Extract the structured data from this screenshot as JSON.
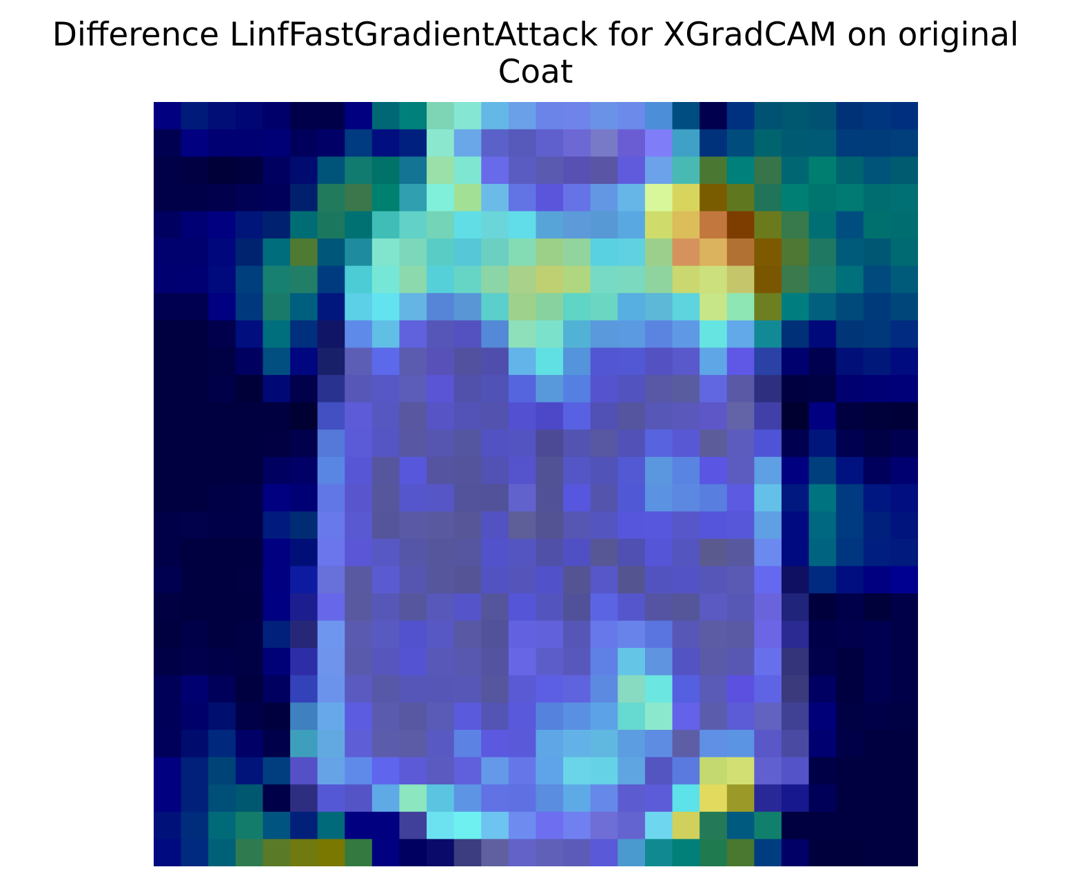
{
  "title": {
    "line1": "Difference LinfFastGradientAttack for XGradCAM on original",
    "line2": "Coat"
  },
  "chart_data": {
    "type": "heatmap",
    "title": "Difference LinfFastGradientAttack for XGradCAM on original Coat",
    "rows": 28,
    "cols": 28,
    "axes": "off",
    "colorscale": "jet colormap blended over a grayscale coat image",
    "cells": [
      [
        "#000080",
        "#001a7a",
        "#000e75",
        "#000673",
        "#00006a",
        "#00004a",
        "#000048",
        "#000080",
        "#006775",
        "#00807a",
        "#7dd5b6",
        "#85e6d3",
        "#63b8e6",
        "#6aa0e8",
        "#6b84e8",
        "#6f84ea",
        "#6a92e6",
        "#6b8ae9",
        "#4c8ed7",
        "#004d82",
        "#00004f",
        "#003080",
        "#005273",
        "#005770",
        "#005172",
        "#003278",
        "#00367e",
        "#002f80"
      ],
      [
        "#000050",
        "#000080",
        "#000073",
        "#000072",
        "#000076",
        "#00005c",
        "#000066",
        "#003a80",
        "#000e80",
        "#002080",
        "#8be8ce",
        "#6aa7e8",
        "#5a62c9",
        "#5759bb",
        "#5f5fce",
        "#6c68d4",
        "#7879c7",
        "#6a5dd3",
        "#7f7ef8",
        "#3fa1c6",
        "#00327c",
        "#004c7d",
        "#00646e",
        "#005b72",
        "#005a75",
        "#003b7b",
        "#003b7a",
        "#003e7c"
      ],
      [
        "#000048",
        "#000043",
        "#000038",
        "#00003f",
        "#000060",
        "#000b70",
        "#005479",
        "#127b70",
        "#007268",
        "#147493",
        "#9ae0a8",
        "#7ee6d1",
        "#686aea",
        "#5a5cc1",
        "#5b5ab1",
        "#5851b3",
        "#5a55a5",
        "#5f5bdc",
        "#6ca2ea",
        "#48bab3",
        "#4a7833",
        "#00807a",
        "#37744a",
        "#006672",
        "#007f70",
        "#006470",
        "#00547a",
        "#005b71"
      ],
      [
        "#000048",
        "#000049",
        "#00004c",
        "#000054",
        "#00005b",
        "#00206d",
        "#227a5c",
        "#3c774b",
        "#00806f",
        "#309fb0",
        "#80f0da",
        "#a2e096",
        "#6bbbe9",
        "#6273e4",
        "#5b55dc",
        "#6573e6",
        "#6397e4",
        "#66b7e8",
        "#d8f79b",
        "#d8d55e",
        "#7a5c00",
        "#5f7820",
        "#1f745a",
        "#007f75",
        "#00746f",
        "#007a73",
        "#006e70",
        "#007074"
      ],
      [
        "#000060",
        "#000074",
        "#000080",
        "#00157a",
        "#00216f",
        "#006d74",
        "#1b785f",
        "#007173",
        "#40bdb6",
        "#62d2c8",
        "#74d4b7",
        "#61dde6",
        "#6ad6da",
        "#60dde9",
        "#57a4d9",
        "#5c9ad9",
        "#5799d4",
        "#5aa8e1",
        "#cfdc6c",
        "#dbbd5a",
        "#c1773e",
        "#7d3d00",
        "#6c7a1e",
        "#387a4b",
        "#006f74",
        "#004e80",
        "#00706f",
        "#006e70"
      ],
      [
        "#00006f",
        "#00006f",
        "#00077c",
        "#002370",
        "#006d7c",
        "#4f7a34",
        "#005678",
        "#1e8c9e",
        "#81e5cd",
        "#7dd7ba",
        "#59cdc5",
        "#55c7d6",
        "#6bd0c2",
        "#84dcb4",
        "#9ccf88",
        "#92d49d",
        "#59d1e0",
        "#5fd1e1",
        "#9ccf8b",
        "#d5925c",
        "#dbb25d",
        "#b07133",
        "#7d5900",
        "#4e7833",
        "#1f7862",
        "#005b7a",
        "#005774",
        "#006a73"
      ],
      [
        "#000070",
        "#000072",
        "#000a7d",
        "#003f7e",
        "#178070",
        "#217f68",
        "#003b80",
        "#4ccdd5",
        "#76e6d6",
        "#8cd9ad",
        "#56d0d8",
        "#66d5c6",
        "#8cd5a7",
        "#aad189",
        "#bfd072",
        "#b0d67f",
        "#76dac4",
        "#7ad9be",
        "#8fd39e",
        "#cad86f",
        "#cde07e",
        "#c5c66b",
        "#7a5600",
        "#3a7a4d",
        "#1a7c6c",
        "#00717a",
        "#004a7d",
        "#005a7a"
      ],
      [
        "#000050",
        "#000050",
        "#000080",
        "#00387e",
        "#1a7a6a",
        "#005f7e",
        "#01177d",
        "#5bd0e6",
        "#62e3ef",
        "#64b5e4",
        "#5684d7",
        "#5996d6",
        "#5bcfcb",
        "#9ed18c",
        "#87d29f",
        "#5ed5c5",
        "#6bd6c2",
        "#57aee0",
        "#5cb8d6",
        "#5ed4df",
        "#c7e687",
        "#8fe6b5",
        "#6d7f20",
        "#007e7f",
        "#00607d",
        "#004a7b",
        "#003a7b",
        "#00467b"
      ],
      [
        "#000040",
        "#000040",
        "#00004c",
        "#000e7e",
        "#006f7d",
        "#002f7e",
        "#111565",
        "#5e8ae9",
        "#61bfe6",
        "#6061dd",
        "#5656b9",
        "#5452c0",
        "#5389d6",
        "#8de0ba",
        "#7ce1ca",
        "#52b2d5",
        "#5a99dc",
        "#5b9ae1",
        "#5b84e0",
        "#5f99e5",
        "#66e4e2",
        "#62a9e9",
        "#128a95",
        "#003078",
        "#00097a",
        "#003678",
        "#00397b",
        "#002b80"
      ],
      [
        "#000040",
        "#000040",
        "#000044",
        "#000061",
        "#004f80",
        "#000580",
        "#19206a",
        "#5c5eb6",
        "#5b69ea",
        "#5b5caf",
        "#5852b8",
        "#5151a0",
        "#4f4ead",
        "#63b4e8",
        "#61e0e3",
        "#5494da",
        "#5356d2",
        "#5258d3",
        "#5451c2",
        "#5a59cb",
        "#5fa6e6",
        "#5f57e6",
        "#2a41a6",
        "#00006f",
        "#000050",
        "#001078",
        "#00187a",
        "#000b80"
      ],
      [
        "#000040",
        "#000040",
        "#000048",
        "#000038",
        "#000876",
        "#00004b",
        "#2a3290",
        "#5757b7",
        "#5758c6",
        "#5c5db8",
        "#5955d5",
        "#5151ab",
        "#5152b6",
        "#5465dd",
        "#5899dc",
        "#5580e2",
        "#5553ce",
        "#5253be",
        "#5858a6",
        "#5a5ca0",
        "#6067e0",
        "#5959a6",
        "#2f2f80",
        "#000040",
        "#000045",
        "#000070",
        "#000075",
        "#000078"
      ],
      [
        "#000040",
        "#000040",
        "#000040",
        "#000040",
        "#000040",
        "#000033",
        "#4350c2",
        "#5e5bd8",
        "#5757c1",
        "#58579f",
        "#5754c6",
        "#5352b6",
        "#5352ae",
        "#5450d2",
        "#4c48c8",
        "#5861e2",
        "#5150b5",
        "#55549f",
        "#5657b7",
        "#5a58ba",
        "#5e57c8",
        "#6364a7",
        "#4040a8",
        "#000030",
        "#000080",
        "#000040",
        "#00003a",
        "#000038"
      ],
      [
        "#000040",
        "#000040",
        "#000040",
        "#000040",
        "#000043",
        "#00004d",
        "#5479d8",
        "#5b5ad7",
        "#5556c3",
        "#5757a3",
        "#5655b0",
        "#5556a0",
        "#5252c3",
        "#5354c1",
        "#4c4a94",
        "#5353b1",
        "#5857a2",
        "#5151b8",
        "#5864df",
        "#5858d5",
        "#5c5c9b",
        "#5b5cbd",
        "#4e54d5",
        "#000050",
        "#00167b",
        "#000050",
        "#000045",
        "#000050"
      ],
      [
        "#000040",
        "#000040",
        "#000040",
        "#000040",
        "#000060",
        "#000067",
        "#5a86e3",
        "#5757d6",
        "#56569f",
        "#5757dc",
        "#5454a0",
        "#54549c",
        "#5252b4",
        "#5554cc",
        "#515196",
        "#5456c5",
        "#5153b8",
        "#5358d3",
        "#5b97de",
        "#5a84e1",
        "#5a55e3",
        "#5c5cc0",
        "#5f9fe3",
        "#000080",
        "#003f7d",
        "#001180",
        "#00005c",
        "#000070"
      ],
      [
        "#000040",
        "#000040",
        "#000046",
        "#000048",
        "#000080",
        "#000075",
        "#6277e6",
        "#5955cd",
        "#56569c",
        "#5555cc",
        "#5656c7",
        "#53539b",
        "#52529b",
        "#6262cd",
        "#515197",
        "#5656de",
        "#5454ad",
        "#5158d6",
        "#5b92e1",
        "#5c88e2",
        "#587ee0",
        "#5b5ae0",
        "#64c0e8",
        "#001880",
        "#007380",
        "#003a80",
        "#001680",
        "#000e80"
      ],
      [
        "#000048",
        "#00004b",
        "#000048",
        "#000048",
        "#001a7e",
        "#002c73",
        "#6779eb",
        "#5959d2",
        "#55559b",
        "#5959a5",
        "#5959a0",
        "#565698",
        "#5252c3",
        "#5e5e98",
        "#535394",
        "#5656b3",
        "#5555c0",
        "#5656dd",
        "#5757dd",
        "#5757c9",
        "#5555dc",
        "#5757d9",
        "#5f9fe3",
        "#000a80",
        "#006880",
        "#003a80",
        "#00207d",
        "#00147d"
      ],
      [
        "#000048",
        "#000040",
        "#000040",
        "#000040",
        "#000080",
        "#000f78",
        "#6b75ec",
        "#5a56d6",
        "#5858c4",
        "#5656a8",
        "#56569c",
        "#5555a0",
        "#5252ca",
        "#5555c1",
        "#5050a8",
        "#5050c4",
        "#575795",
        "#5050b2",
        "#5555d8",
        "#5555bf",
        "#5a5a8f",
        "#58589f",
        "#6b8af0",
        "#000a80",
        "#006480",
        "#003580",
        "#001e7f",
        "#001a7d"
      ],
      [
        "#000050",
        "#000040",
        "#000040",
        "#000042",
        "#000080",
        "#0c1ba0",
        "#6870da",
        "#5959a2",
        "#5b5bd1",
        "#5656b0",
        "#56569d",
        "#545496",
        "#5252c3",
        "#5454bb",
        "#5151c9",
        "#545492",
        "#5757ca",
        "#545490",
        "#5353c0",
        "#5353c5",
        "#5656b8",
        "#5a5ab5",
        "#6569ef",
        "#101063",
        "#002a80",
        "#000e80",
        "#000080",
        "#000090"
      ],
      [
        "#000042",
        "#000040",
        "#000040",
        "#000040",
        "#000082",
        "#1c1e8f",
        "#6767e9",
        "#59599f",
        "#5757b8",
        "#56569e",
        "#5858bb",
        "#5555c9",
        "#55559b",
        "#5555d8",
        "#5454be",
        "#51519a",
        "#5b64e3",
        "#5555cc",
        "#5454a3",
        "#55559a",
        "#5a5ac2",
        "#5757b5",
        "#6a64dc",
        "#20247a",
        "#00003c",
        "#00004a",
        "#00003a",
        "#000048"
      ],
      [
        "#000040",
        "#000048",
        "#000040",
        "#000044",
        "#00207c",
        "#262877",
        "#6f96ef",
        "#5a5ab1",
        "#5959c2",
        "#5252ce",
        "#5858c4",
        "#5858a5",
        "#52529a",
        "#6262e0",
        "#6161dc",
        "#5656b7",
        "#6779ea",
        "#6884eb",
        "#5a75e0",
        "#5757b8",
        "#5c5ca5",
        "#5a5aa4",
        "#6c66e6",
        "#2a2a92",
        "#000048",
        "#00004d",
        "#000050",
        "#000048"
      ],
      [
        "#000046",
        "#00004c",
        "#000048",
        "#000044",
        "#000077",
        "#2d2da8",
        "#6e94ec",
        "#5a5aad",
        "#5656bd",
        "#5454d3",
        "#5858b9",
        "#5858b0",
        "#5353a2",
        "#6767e5",
        "#5d5dca",
        "#5858bc",
        "#5f81e5",
        "#65c5e6",
        "#5f94e0",
        "#5353c3",
        "#5a5aa9",
        "#5858b3",
        "#6770ea",
        "#34347a",
        "#00004b",
        "#000040",
        "#000050",
        "#000048"
      ],
      [
        "#000058",
        "#000070",
        "#00005a",
        "#000040",
        "#000060",
        "#3342b8",
        "#6b93ec",
        "#5a5ac1",
        "#5858a8",
        "#5656b9",
        "#5656b7",
        "#5757b7",
        "#56569e",
        "#5a5ad4",
        "#5c5ee3",
        "#5f63de",
        "#5d8ae1",
        "#88dac0",
        "#6ce6e0",
        "#5460e0",
        "#5a5ab7",
        "#5c50e1",
        "#5f64e5",
        "#3a3a7d",
        "#000063",
        "#000040",
        "#000050",
        "#000048"
      ],
      [
        "#000058",
        "#00006a",
        "#000e70",
        "#000048",
        "#00003f",
        "#3f80c0",
        "#66a8ea",
        "#5c5ce0",
        "#5a5aae",
        "#5858a2",
        "#5a5ab7",
        "#5a5add",
        "#5454b5",
        "#5959dc",
        "#5582dd",
        "#5a90e2",
        "#5ba3e6",
        "#66d9d0",
        "#8ce8cc",
        "#6462e8",
        "#5c5cad",
        "#5c5cd6",
        "#6262c1",
        "#404094",
        "#000078",
        "#000045",
        "#000048",
        "#000045"
      ],
      [
        "#00005a",
        "#000b6e",
        "#00287c",
        "#000066",
        "#00004a",
        "#3e9fbd",
        "#62a9e1",
        "#5e5ed6",
        "#5c5cac",
        "#5c5ca6",
        "#5959c3",
        "#5c82e3",
        "#5c58e0",
        "#5959da",
        "#5ea6e6",
        "#62b2e7",
        "#60b8e1",
        "#5c9ce0",
        "#5e8ce3",
        "#5e5ea7",
        "#5f90e6",
        "#5c94e4",
        "#5a57c9",
        "#4a4aa3",
        "#000070",
        "#000048",
        "#000040",
        "#000040"
      ],
      [
        "#000080",
        "#00207a",
        "#004477",
        "#00147a",
        "#003e80",
        "#5550c6",
        "#66a3e6",
        "#5f8aea",
        "#5f65ec",
        "#5c5ad7",
        "#5a5ac0",
        "#6060dd",
        "#6399e8",
        "#6577e8",
        "#5fa4e8",
        "#6ad5e8",
        "#66d2e6",
        "#5ea5e2",
        "#5555c1",
        "#5a7ae0",
        "#c4d970",
        "#d2df73",
        "#6060d0",
        "#5454c8",
        "#000046",
        "#000040",
        "#000040",
        "#000040"
      ],
      [
        "#000080",
        "#00207a",
        "#004f78",
        "#005770",
        "#000048",
        "#2e2e80",
        "#5558d5",
        "#5454c6",
        "#5fa9e6",
        "#8ce6c0",
        "#5bc4e0",
        "#5e94e4",
        "#6072e4",
        "#5f70e2",
        "#5a8ce0",
        "#5eaae6",
        "#6688e8",
        "#5c5cd0",
        "#5c5cd8",
        "#5ce2e8",
        "#e2da5e",
        "#9b9a28",
        "#282898",
        "#18188e",
        "#000058",
        "#000040",
        "#000040",
        "#000040"
      ],
      [
        "#00127a",
        "#002c7c",
        "#006a78",
        "#147c6a",
        "#005480",
        "#00207a",
        "#006a7a",
        "#000080",
        "#000080",
        "#40409a",
        "#6ce2f0",
        "#6ef0f0",
        "#6ec4f0",
        "#6e8cf0",
        "#6e6ef0",
        "#7080f0",
        "#6e6ed6",
        "#6464d0",
        "#6ed6ee",
        "#d0d05c",
        "#247a58",
        "#005a80",
        "#10806c",
        "#000040",
        "#000040",
        "#000040",
        "#000040",
        "#000040"
      ],
      [
        "#000a80",
        "#002a80",
        "#006078",
        "#307a50",
        "#5a7a28",
        "#707a10",
        "#7a7800",
        "#347a40",
        "#000080",
        "#000060",
        "#0a0a6a",
        "#3c3c80",
        "#6060a0",
        "#6262c8",
        "#6060b8",
        "#5c5cb8",
        "#5a5ad8",
        "#4a9ad0",
        "#108a90",
        "#008078",
        "#207a50",
        "#4a7830",
        "#003d80",
        "#000066",
        "#00003c",
        "#00003c",
        "#000040",
        "#000040"
      ]
    ]
  }
}
